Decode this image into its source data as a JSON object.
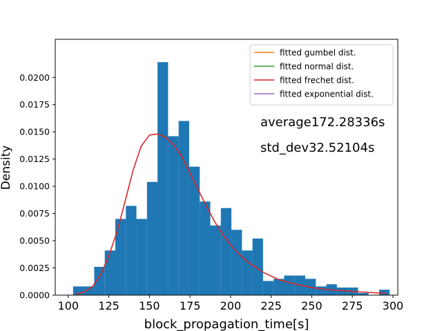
{
  "chart_data": {
    "type": "bar",
    "xlabel": "block_propagation_time[s]",
    "ylabel": "Density",
    "xlim": [
      92,
      303
    ],
    "ylim": [
      0,
      0.0235
    ],
    "x_ticks": [
      100,
      125,
      150,
      175,
      200,
      225,
      250,
      275,
      300
    ],
    "y_ticks": [
      0.0,
      0.0025,
      0.005,
      0.0075,
      0.01,
      0.0125,
      0.015,
      0.0175,
      0.02
    ],
    "y_tick_labels": [
      "0.0000",
      "0.0025",
      "0.0050",
      "0.0075",
      "0.0100",
      "0.0125",
      "0.0150",
      "0.0175",
      "0.0200"
    ],
    "histogram": {
      "color": "#1f77b4",
      "bin_edges": [
        103,
        109.5,
        116,
        122.5,
        129,
        135.5,
        142,
        148.5,
        155,
        161.5,
        168,
        174.5,
        181,
        187.5,
        194,
        200.5,
        207,
        213.5,
        220,
        226.5,
        233,
        239.5,
        246,
        252.5,
        259,
        265.5,
        272,
        278.5,
        285,
        291.5,
        298
      ],
      "densities": [
        0.0008,
        0.0008,
        0.0026,
        0.0041,
        0.007,
        0.0082,
        0.007,
        0.0104,
        0.0214,
        0.0146,
        0.016,
        0.0118,
        0.0086,
        0.0064,
        0.008,
        0.006,
        0.0041,
        0.0052,
        0.0013,
        0.0015,
        0.0018,
        0.0018,
        0.0015,
        0.0008,
        0.001,
        0.0007,
        0.0007,
        0.0002,
        0.0,
        0.0005
      ]
    },
    "series": [
      {
        "name": "fitted frechet dist.",
        "color": "#d62728",
        "x": [
          105,
          110,
          115,
          120,
          125,
          130,
          135,
          140,
          145,
          150,
          155,
          160,
          165,
          170,
          175,
          180,
          185,
          190,
          195,
          200,
          205,
          210,
          220,
          230,
          240,
          250,
          260,
          270,
          280,
          290,
          296
        ],
        "y": [
          0.0001,
          0.0003,
          0.0008,
          0.0019,
          0.0036,
          0.0058,
          0.0086,
          0.0115,
          0.0137,
          0.0147,
          0.0148,
          0.0145,
          0.0138,
          0.0127,
          0.0112,
          0.0097,
          0.0082,
          0.0068,
          0.0056,
          0.0046,
          0.0038,
          0.0031,
          0.0021,
          0.0014,
          0.001,
          0.0007,
          0.0005,
          0.0004,
          0.0003,
          0.0002,
          0.0002
        ]
      }
    ],
    "legend": {
      "location": "top-right",
      "entries": [
        {
          "label": "fitted gumbel dist.",
          "color": "#ff7f0e"
        },
        {
          "label": "fitted normal dist.",
          "color": "#2ca02c"
        },
        {
          "label": "fitted frechet dist.",
          "color": "#d62728"
        },
        {
          "label": "fitted exponential dist.",
          "color": "#9467bd"
        }
      ]
    },
    "annotations": [
      {
        "text": "average172.28336s"
      },
      {
        "text": "std_dev32.52104s"
      }
    ],
    "grid": false
  }
}
